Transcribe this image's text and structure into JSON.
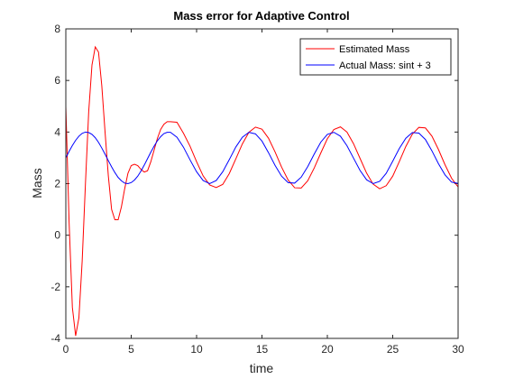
{
  "chart_data": {
    "type": "line",
    "title": "Mass error for Adaptive Control",
    "xlabel": "time",
    "ylabel": "Mass",
    "x": [
      0,
      0.25,
      0.5,
      0.75,
      1,
      1.25,
      1.5,
      1.75,
      2,
      2.25,
      2.5,
      2.75,
      3,
      3.25,
      3.5,
      3.75,
      4,
      4.25,
      4.5,
      4.75,
      5,
      5.25,
      5.5,
      5.75,
      6,
      6.25,
      6.5,
      6.75,
      7,
      7.25,
      7.5,
      7.75,
      8,
      8.5,
      9,
      9.5,
      10,
      10.5,
      11,
      11.5,
      12,
      12.5,
      13,
      13.5,
      14,
      14.5,
      15,
      15.5,
      16,
      16.5,
      17,
      17.5,
      18,
      18.5,
      19,
      19.5,
      20,
      20.5,
      21,
      21.5,
      22,
      22.5,
      23,
      23.5,
      24,
      24.5,
      25,
      25.5,
      26,
      26.5,
      27,
      27.5,
      28,
      28.5,
      29,
      29.5,
      30
    ],
    "series": [
      {
        "name": "Estimated Mass",
        "color": "#ff0000",
        "values": [
          5.0,
          0.5,
          -2.8,
          -3.9,
          -3.2,
          -1.0,
          2.0,
          4.8,
          6.6,
          7.3,
          7.1,
          5.8,
          4.0,
          2.3,
          1.0,
          0.6,
          0.6,
          1.1,
          1.8,
          2.4,
          2.7,
          2.75,
          2.7,
          2.55,
          2.45,
          2.5,
          2.85,
          3.3,
          3.75,
          4.1,
          4.3,
          4.4,
          4.4,
          4.38,
          3.95,
          3.45,
          2.85,
          2.3,
          1.95,
          1.85,
          1.97,
          2.39,
          2.96,
          3.54,
          3.99,
          4.19,
          4.11,
          3.76,
          3.23,
          2.64,
          2.14,
          1.84,
          1.83,
          2.11,
          2.61,
          3.19,
          3.74,
          4.1,
          4.2,
          4.0,
          3.55,
          2.98,
          2.41,
          1.98,
          1.8,
          1.92,
          2.29,
          2.85,
          3.44,
          3.92,
          4.18,
          4.16,
          3.84,
          3.32,
          2.73,
          2.21,
          1.87
        ]
      },
      {
        "name": "Actual Mass: sint + 3",
        "color": "#0000ff",
        "values": [
          3.0,
          3.25,
          3.48,
          3.68,
          3.84,
          3.95,
          4.0,
          3.98,
          3.91,
          3.78,
          3.6,
          3.38,
          3.14,
          2.89,
          2.65,
          2.43,
          2.24,
          2.11,
          2.02,
          2.0,
          2.04,
          2.14,
          2.29,
          2.49,
          2.72,
          2.97,
          3.22,
          3.45,
          3.66,
          3.82,
          3.94,
          3.99,
          3.99,
          3.8,
          3.41,
          2.92,
          2.46,
          2.12,
          2.0,
          2.12,
          2.46,
          2.93,
          3.42,
          3.8,
          3.99,
          3.93,
          3.65,
          3.2,
          2.71,
          2.29,
          2.04,
          2.02,
          2.25,
          2.66,
          3.15,
          3.61,
          3.91,
          3.99,
          3.84,
          3.47,
          2.99,
          2.51,
          2.15,
          2.0,
          2.09,
          2.4,
          2.87,
          3.36,
          3.76,
          3.98,
          3.96,
          3.71,
          3.27,
          2.77,
          2.34,
          2.06,
          2.01
        ]
      }
    ],
    "xlim": [
      0,
      30
    ],
    "xticks": [
      0,
      5,
      10,
      15,
      20,
      25,
      30
    ],
    "ylim": [
      -4,
      8
    ],
    "yticks": [
      -4,
      -2,
      0,
      2,
      4,
      6,
      8
    ],
    "grid": false,
    "legend": "northeast"
  }
}
